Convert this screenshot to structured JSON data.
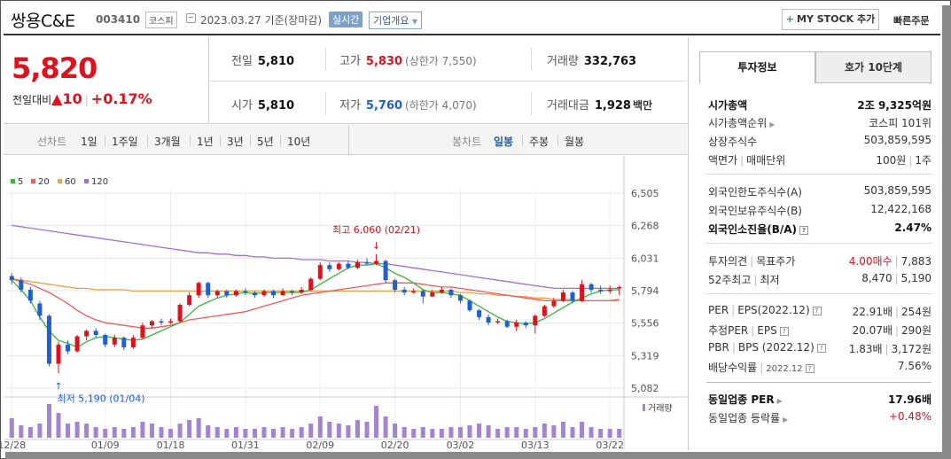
{
  "header": {
    "name": "쌍용C&E",
    "code": "003410",
    "market": "코스피",
    "date": "2023.03.27",
    "date_suffix": "기준(장마감)",
    "realtime": "실시간",
    "corp_info": "기업개요",
    "mystock": "MY STOCK 추가",
    "quick_order": "빠른주문"
  },
  "price": {
    "current": "5,820",
    "change_label": "전일대비",
    "change": "10",
    "change_pct": "+0.17%"
  },
  "stats": {
    "prev_label": "전일",
    "prev": "5,810",
    "high_label": "고가",
    "high": "5,830",
    "upper_limit": "(상한가 7,550)",
    "volume_label": "거래량",
    "volume": "332,763",
    "open_label": "시가",
    "open": "5,810",
    "low_label": "저가",
    "low": "5,760",
    "lower_limit": "(하한가 4,070)",
    "amount_label": "거래대금",
    "amount": "1,928",
    "amount_unit": "백만"
  },
  "period": {
    "line_chart": "선차트",
    "tabs": [
      "1일",
      "1주일",
      "3개월",
      "1년",
      "3년",
      "5년",
      "10년"
    ],
    "candle_chart": "봉차트",
    "candle_tabs": [
      "일봉",
      "주봉",
      "월봉"
    ]
  },
  "colors": {
    "up": "#e0101e",
    "down": "#1f5fd0",
    "ma5": "#3cb43c",
    "ma20": "#f05a5a",
    "ma60": "#f0a040",
    "ma120": "#a070d0"
  },
  "chart_data": {
    "type": "candlestick",
    "legend": [
      "5",
      "20",
      "60",
      "120"
    ],
    "yticks": [
      "6,505",
      "6,268",
      "6,031",
      "5,794",
      "5,556",
      "5,319",
      "5,082"
    ],
    "ylim": [
      5082,
      6505
    ],
    "xticks": [
      "12/28",
      "01/09",
      "01/18",
      "01/31",
      "02/09",
      "02/20",
      "03/02",
      "03/13",
      "03/22"
    ],
    "max_label": "최고 6,060 (02/21)",
    "min_label": "최저 5,190 (01/04)",
    "volume_label": "거래량",
    "candles": [
      [
        5900,
        5870,
        5920,
        5840
      ],
      [
        5870,
        5800,
        5890,
        5780
      ],
      [
        5800,
        5720,
        5820,
        5700
      ],
      [
        5700,
        5610,
        5720,
        5580
      ],
      [
        5610,
        5260,
        5620,
        5240
      ],
      [
        5260,
        5400,
        5420,
        5190
      ],
      [
        5400,
        5350,
        5430,
        5330
      ],
      [
        5350,
        5460,
        5470,
        5340
      ],
      [
        5460,
        5500,
        5510,
        5430
      ],
      [
        5500,
        5470,
        5520,
        5450
      ],
      [
        5470,
        5400,
        5480,
        5380
      ],
      [
        5400,
        5450,
        5470,
        5380
      ],
      [
        5450,
        5380,
        5460,
        5360
      ],
      [
        5380,
        5450,
        5470,
        5370
      ],
      [
        5450,
        5540,
        5560,
        5440
      ],
      [
        5540,
        5570,
        5580,
        5520
      ],
      [
        5570,
        5560,
        5590,
        5540
      ],
      [
        5560,
        5570,
        5590,
        5550
      ],
      [
        5570,
        5690,
        5700,
        5560
      ],
      [
        5690,
        5760,
        5780,
        5680
      ],
      [
        5760,
        5850,
        5860,
        5740
      ],
      [
        5850,
        5760,
        5860,
        5740
      ],
      [
        5760,
        5790,
        5800,
        5740
      ],
      [
        5790,
        5760,
        5800,
        5740
      ],
      [
        5760,
        5790,
        5800,
        5750
      ],
      [
        5790,
        5780,
        5810,
        5760
      ],
      [
        5780,
        5760,
        5790,
        5740
      ],
      [
        5760,
        5790,
        5800,
        5750
      ],
      [
        5790,
        5760,
        5800,
        5740
      ],
      [
        5760,
        5790,
        5810,
        5760
      ],
      [
        5790,
        5780,
        5800,
        5760
      ],
      [
        5780,
        5800,
        5820,
        5770
      ],
      [
        5800,
        5880,
        5890,
        5790
      ],
      [
        5880,
        5980,
        6000,
        5870
      ],
      [
        5980,
        5950,
        6000,
        5930
      ],
      [
        5950,
        5990,
        6000,
        5940
      ],
      [
        5990,
        5960,
        6010,
        5950
      ],
      [
        5960,
        6000,
        6020,
        5950
      ],
      [
        6000,
        5990,
        6030,
        5980
      ],
      [
        5990,
        6010,
        6060,
        5980
      ],
      [
        6010,
        5870,
        6020,
        5850
      ],
      [
        5870,
        5800,
        5880,
        5780
      ],
      [
        5800,
        5780,
        5820,
        5760
      ],
      [
        5780,
        5790,
        5810,
        5770
      ],
      [
        5790,
        5750,
        5800,
        5700
      ],
      [
        5750,
        5780,
        5800,
        5760
      ],
      [
        5780,
        5800,
        5820,
        5770
      ],
      [
        5800,
        5760,
        5810,
        5740
      ],
      [
        5760,
        5720,
        5770,
        5700
      ],
      [
        5720,
        5650,
        5730,
        5640
      ],
      [
        5650,
        5600,
        5660,
        5580
      ],
      [
        5600,
        5560,
        5620,
        5540
      ],
      [
        5560,
        5570,
        5590,
        5550
      ],
      [
        5570,
        5530,
        5580,
        5520
      ],
      [
        5530,
        5560,
        5580,
        5500
      ],
      [
        5560,
        5540,
        5570,
        5520
      ],
      [
        5540,
        5610,
        5620,
        5480
      ],
      [
        5610,
        5680,
        5690,
        5600
      ],
      [
        5680,
        5720,
        5740,
        5670
      ],
      [
        5720,
        5780,
        5800,
        5710
      ],
      [
        5780,
        5720,
        5790,
        5700
      ],
      [
        5720,
        5840,
        5870,
        5710
      ],
      [
        5840,
        5800,
        5850,
        5780
      ],
      [
        5800,
        5790,
        5830,
        5770
      ],
      [
        5790,
        5800,
        5830,
        5770
      ],
      [
        5810,
        5820,
        5830,
        5760
      ]
    ],
    "volumes": [
      55,
      35,
      30,
      40,
      95,
      70,
      40,
      45,
      40,
      30,
      25,
      30,
      25,
      30,
      45,
      40,
      30,
      25,
      40,
      50,
      55,
      35,
      30,
      25,
      30,
      25,
      25,
      30,
      25,
      30,
      25,
      30,
      40,
      60,
      45,
      40,
      35,
      50,
      45,
      90,
      60,
      40,
      30,
      25,
      30,
      25,
      25,
      30,
      30,
      35,
      40,
      35,
      25,
      30,
      30,
      25,
      30,
      40,
      35,
      45,
      30,
      45,
      30,
      25,
      25,
      25
    ],
    "ma5": [
      5870,
      5800,
      5720,
      5600,
      5500,
      5430,
      5410,
      5380,
      5420,
      5450,
      5460,
      5450,
      5440,
      5430,
      5440,
      5470,
      5500,
      5530,
      5560,
      5620,
      5680,
      5710,
      5740,
      5760,
      5770,
      5780,
      5770,
      5780,
      5780,
      5780,
      5780,
      5780,
      5800,
      5840,
      5880,
      5920,
      5960,
      5980,
      5980,
      5990,
      5960,
      5920,
      5890,
      5850,
      5800,
      5780,
      5780,
      5770,
      5760,
      5720,
      5680,
      5640,
      5600,
      5570,
      5560,
      5550,
      5560,
      5590,
      5630,
      5670,
      5710,
      5740,
      5770,
      5790,
      5800,
      5800
    ],
    "ma20": [
      5880,
      5860,
      5840,
      5810,
      5780,
      5740,
      5700,
      5650,
      5610,
      5580,
      5560,
      5550,
      5540,
      5530,
      5520,
      5520,
      5530,
      5540,
      5560,
      5580,
      5590,
      5600,
      5610,
      5620,
      5630,
      5640,
      5660,
      5680,
      5700,
      5720,
      5740,
      5760,
      5770,
      5780,
      5790,
      5800,
      5810,
      5820,
      5830,
      5840,
      5850,
      5850,
      5850,
      5850,
      5840,
      5830,
      5820,
      5820,
      5810,
      5800,
      5790,
      5780,
      5770,
      5760,
      5750,
      5740,
      5730,
      5720,
      5720,
      5720,
      5720,
      5720,
      5720,
      5720,
      5720,
      5730
    ],
    "ma60": [
      5880,
      5870,
      5860,
      5850,
      5840,
      5830,
      5820,
      5810,
      5810,
      5800,
      5800,
      5800,
      5800,
      5790,
      5790,
      5790,
      5790,
      5790,
      5790,
      5790,
      5790,
      5790,
      5790,
      5790,
      5790,
      5790,
      5790,
      5790,
      5790,
      5790,
      5790,
      5790,
      5790,
      5790,
      5790,
      5790,
      5790,
      5790,
      5790,
      5790,
      5790,
      5790,
      5790,
      5790,
      5790,
      5790,
      5790,
      5790,
      5780,
      5780,
      5770,
      5770,
      5760,
      5760,
      5750,
      5750,
      5740,
      5740,
      5730,
      5730,
      5730,
      5720,
      5720,
      5720,
      5720,
      5720
    ],
    "ma120": [
      6270,
      6260,
      6250,
      6240,
      6230,
      6220,
      6210,
      6200,
      6190,
      6180,
      6170,
      6160,
      6150,
      6140,
      6130,
      6120,
      6110,
      6100,
      6090,
      6080,
      6070,
      6070,
      6060,
      6060,
      6050,
      6050,
      6040,
      6040,
      6030,
      6030,
      6030,
      6020,
      6020,
      6020,
      6010,
      6010,
      6010,
      6000,
      6000,
      5990,
      5990,
      5980,
      5970,
      5960,
      5950,
      5940,
      5930,
      5920,
      5910,
      5900,
      5890,
      5880,
      5870,
      5860,
      5850,
      5840,
      5830,
      5820,
      5810,
      5810,
      5810,
      5810,
      5810,
      5810,
      5810,
      5810
    ]
  },
  "invest": {
    "tab_on": "투자정보",
    "tab_off": "호가 10단계",
    "rows1": [
      {
        "k": "시가총액",
        "v": "2조 9,325억원"
      },
      {
        "k": "시가총액순위",
        "v": "코스피 101위"
      },
      {
        "k": "상장주식수",
        "v": "503,859,595"
      },
      {
        "k1": "액면가",
        "k2": "매매단위",
        "v1": "100원",
        "v2": "1주"
      }
    ],
    "rows2": [
      {
        "k": "외국인한도주식수(A)",
        "v": "503,859,595"
      },
      {
        "k": "외국인보유주식수(B)",
        "v": "12,422,168"
      },
      {
        "k": "외국인소진율(B/A)",
        "v": "2.47%"
      }
    ],
    "rows3": [
      {
        "k1": "투자의견",
        "k2": "목표주가",
        "v1": "4.00매수",
        "v2": "7,883"
      },
      {
        "k1": "52주최고",
        "k2": "최저",
        "v1": "8,470",
        "v2": "5,190"
      }
    ],
    "rows4": [
      {
        "k1": "PER",
        "k2": "EPS(2022.12)",
        "v1": "22.91배",
        "v2": "254원"
      },
      {
        "k1": "추정PER",
        "k2": "EPS",
        "v1": "20.07배",
        "v2": "290원"
      },
      {
        "k1": "PBR",
        "k2": "BPS (2022.12)",
        "v1": "1.83배",
        "v2": "3,172원"
      },
      {
        "k": "배당수익률",
        "ksub": "2022.12",
        "v": "7.56%"
      }
    ],
    "rows5": [
      {
        "k": "동일업종 PER",
        "v": "17.96배"
      },
      {
        "k": "동일업종 등락률",
        "v": "+0.48%"
      }
    ]
  }
}
